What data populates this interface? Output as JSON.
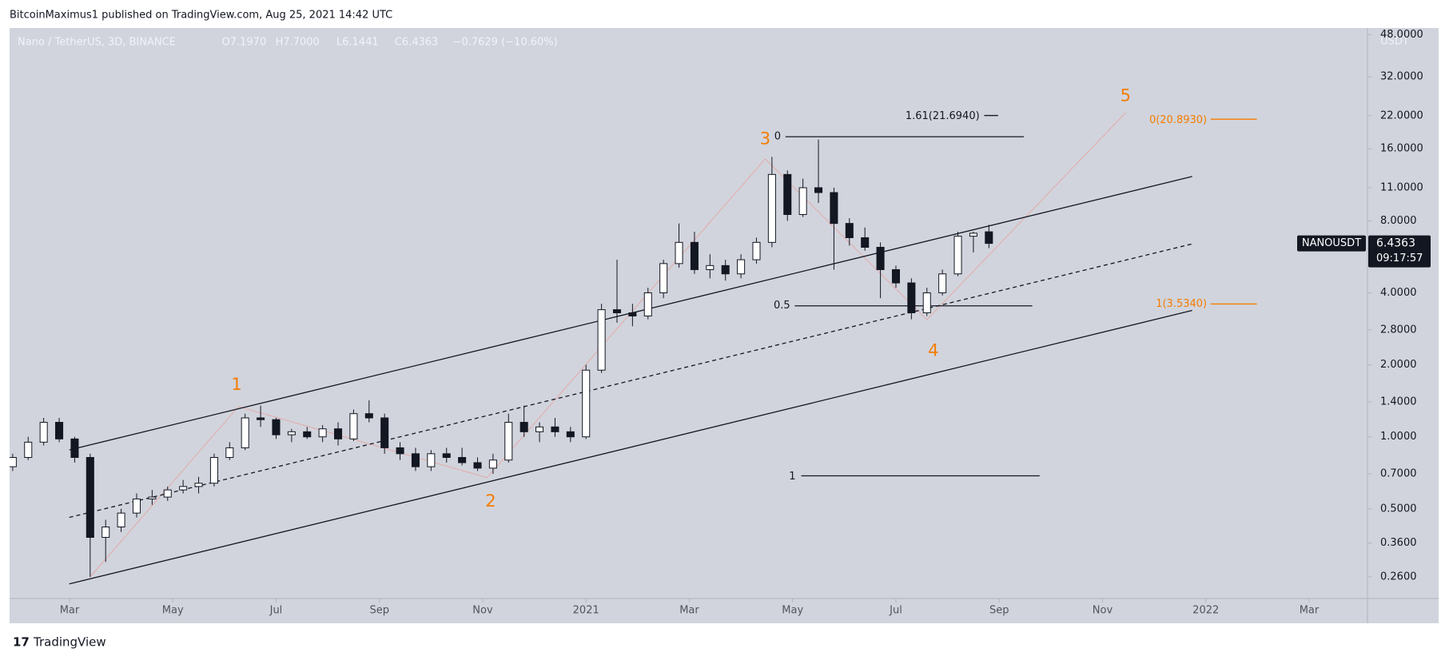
{
  "header": {
    "published": "BitcoinMaximus1 published on TradingView.com, Aug 25, 2021 14:42 UTC",
    "brand": "TradingView"
  },
  "chart_data": {
    "type": "candlestick",
    "symbol_line": "Nano / TetherUS, 3D, BINANCE",
    "legend_values": [
      "O7.1970",
      "H7.7000",
      "L6.1441",
      "C6.4363",
      "−0.7629 (−10.60%)"
    ],
    "y_axis_unit": "USDT",
    "ticker": "NANOUSDT",
    "last_price": 6.4363,
    "countdown": "09:17:57",
    "log_scale": true,
    "grid": false,
    "up_color": "#ffffff",
    "down_color": "#131722",
    "x": [
      0.9,
      1.2,
      1.5,
      1.8,
      2.1,
      2.4,
      2.7,
      3.0,
      3.3,
      3.6,
      3.9,
      4.2,
      4.5,
      4.8,
      5.1,
      5.4,
      5.7,
      6.0,
      6.3,
      6.6,
      6.9,
      7.2,
      7.5,
      7.8,
      8.1,
      8.4,
      8.7,
      9.0,
      9.3,
      9.6,
      9.9,
      10.2,
      10.5,
      10.8,
      11.1,
      11.4,
      11.7,
      12.0,
      12.3,
      12.6,
      12.9,
      13.2,
      13.5,
      13.8,
      14.1,
      14.4,
      14.7,
      15.0,
      15.3,
      15.6,
      15.9,
      16.2,
      16.5,
      16.8,
      17.1,
      17.4,
      17.7,
      18.0,
      18.3,
      18.6,
      18.9,
      19.2,
      19.5,
      19.8
    ],
    "ohlc": [
      [
        0.75,
        0.85,
        0.72,
        0.82
      ],
      [
        0.82,
        1.0,
        0.8,
        0.95
      ],
      [
        0.95,
        1.2,
        0.92,
        1.15
      ],
      [
        1.15,
        1.2,
        0.95,
        0.98
      ],
      [
        0.98,
        1.0,
        0.78,
        0.82
      ],
      [
        0.82,
        0.85,
        0.26,
        0.38
      ],
      [
        0.38,
        0.45,
        0.3,
        0.42
      ],
      [
        0.42,
        0.5,
        0.4,
        0.48
      ],
      [
        0.48,
        0.58,
        0.46,
        0.55
      ],
      [
        0.55,
        0.6,
        0.52,
        0.56
      ],
      [
        0.56,
        0.62,
        0.54,
        0.6
      ],
      [
        0.6,
        0.66,
        0.58,
        0.62
      ],
      [
        0.62,
        0.68,
        0.58,
        0.64
      ],
      [
        0.64,
        0.85,
        0.62,
        0.82
      ],
      [
        0.82,
        0.95,
        0.8,
        0.9
      ],
      [
        0.9,
        1.25,
        0.88,
        1.2
      ],
      [
        1.2,
        1.35,
        1.1,
        1.18
      ],
      [
        1.18,
        1.2,
        0.98,
        1.02
      ],
      [
        1.02,
        1.08,
        0.95,
        1.05
      ],
      [
        1.05,
        1.1,
        0.98,
        1.0
      ],
      [
        1.0,
        1.12,
        0.95,
        1.08
      ],
      [
        1.08,
        1.15,
        0.92,
        0.98
      ],
      [
        0.98,
        1.3,
        0.96,
        1.25
      ],
      [
        1.25,
        1.42,
        1.15,
        1.2
      ],
      [
        1.2,
        1.25,
        0.85,
        0.9
      ],
      [
        0.9,
        0.95,
        0.8,
        0.85
      ],
      [
        0.85,
        0.9,
        0.72,
        0.75
      ],
      [
        0.75,
        0.88,
        0.72,
        0.85
      ],
      [
        0.85,
        0.9,
        0.78,
        0.82
      ],
      [
        0.82,
        0.9,
        0.76,
        0.78
      ],
      [
        0.78,
        0.82,
        0.72,
        0.74
      ],
      [
        0.74,
        0.85,
        0.7,
        0.8
      ],
      [
        0.8,
        1.25,
        0.78,
        1.15
      ],
      [
        1.15,
        1.35,
        1.0,
        1.05
      ],
      [
        1.05,
        1.15,
        0.95,
        1.1
      ],
      [
        1.1,
        1.2,
        1.0,
        1.05
      ],
      [
        1.05,
        1.1,
        0.95,
        1.0
      ],
      [
        1.0,
        2.0,
        0.98,
        1.9
      ],
      [
        1.9,
        3.6,
        1.85,
        3.4
      ],
      [
        3.4,
        5.5,
        3.0,
        3.3
      ],
      [
        3.3,
        3.6,
        2.9,
        3.2
      ],
      [
        3.2,
        4.2,
        3.1,
        4.0
      ],
      [
        4.0,
        5.5,
        3.8,
        5.3
      ],
      [
        5.3,
        7.8,
        5.1,
        6.5
      ],
      [
        6.5,
        7.2,
        4.8,
        5.0
      ],
      [
        5.0,
        5.8,
        4.6,
        5.2
      ],
      [
        5.2,
        5.5,
        4.5,
        4.8
      ],
      [
        4.8,
        5.8,
        4.6,
        5.5
      ],
      [
        5.5,
        6.8,
        5.3,
        6.5
      ],
      [
        6.5,
        14.8,
        6.2,
        12.5
      ],
      [
        12.5,
        13.0,
        8.0,
        8.5
      ],
      [
        8.5,
        12.0,
        8.3,
        11.0
      ],
      [
        11.0,
        17.5,
        9.5,
        10.5
      ],
      [
        10.5,
        11.0,
        5.0,
        7.8
      ],
      [
        7.8,
        8.2,
        6.3,
        6.8
      ],
      [
        6.8,
        7.5,
        6.0,
        6.2
      ],
      [
        6.2,
        6.5,
        3.8,
        5.0
      ],
      [
        5.0,
        5.2,
        4.2,
        4.4
      ],
      [
        4.4,
        4.6,
        3.1,
        3.3
      ],
      [
        3.3,
        4.2,
        3.2,
        4.0
      ],
      [
        4.0,
        5.0,
        3.9,
        4.8
      ],
      [
        4.8,
        7.2,
        4.7,
        6.9
      ],
      [
        6.9,
        7.2,
        5.9,
        7.1
      ],
      [
        7.197,
        7.7,
        6.1441,
        6.4363
      ]
    ],
    "xlim": [
      0.84,
      27.13
    ],
    "xticks": [
      {
        "value": 2,
        "label": "Mar"
      },
      {
        "value": 4,
        "label": "May"
      },
      {
        "value": 6,
        "label": "Jul"
      },
      {
        "value": 8,
        "label": "Sep"
      },
      {
        "value": 10,
        "label": "Nov"
      },
      {
        "value": 12,
        "label": "2021"
      },
      {
        "value": 14,
        "label": "Mar"
      },
      {
        "value": 16,
        "label": "May"
      },
      {
        "value": 18,
        "label": "Jul"
      },
      {
        "value": 20,
        "label": "Sep"
      },
      {
        "value": 22,
        "label": "Nov"
      },
      {
        "value": 24,
        "label": "2022"
      },
      {
        "value": 26,
        "label": "Mar"
      }
    ],
    "ylim": [
      0.211,
      51.2
    ],
    "yticks": [
      {
        "value": 0.26,
        "label": "0.2600"
      },
      {
        "value": 0.36,
        "label": "0.3600"
      },
      {
        "value": 0.5,
        "label": "0.5000"
      },
      {
        "value": 0.7,
        "label": "0.7000"
      },
      {
        "value": 1,
        "label": "1.0000"
      },
      {
        "value": 1.4,
        "label": "1.4000"
      },
      {
        "value": 2,
        "label": "2.0000"
      },
      {
        "value": 2.8,
        "label": "2.8000"
      },
      {
        "value": 4,
        "label": "4.0000"
      },
      {
        "value": 8,
        "label": "8.0000"
      },
      {
        "value": 11,
        "label": "11.0000"
      },
      {
        "value": 16,
        "label": "16.0000"
      },
      {
        "value": 22,
        "label": "22.0000"
      },
      {
        "value": 32,
        "label": "32.0000"
      },
      {
        "value": 48,
        "label": "48.0000"
      }
    ],
    "wave_labels": [
      "1",
      "2",
      "3",
      "4",
      "5"
    ],
    "fib_labels": [
      "1.61(21.6940)",
      "0",
      "0.5",
      "1",
      "0(20.8930)",
      "1(3.5340)"
    ]
  }
}
